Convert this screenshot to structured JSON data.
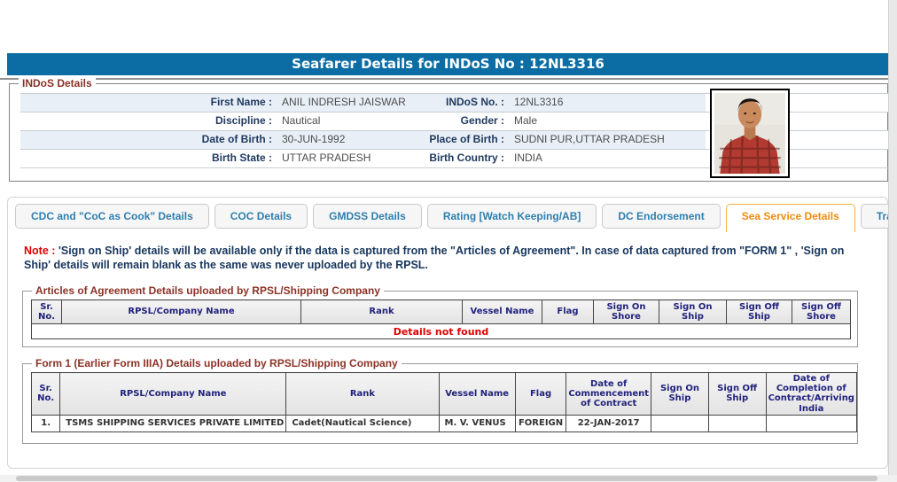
{
  "header": {
    "title": "Seafarer Details for INDoS No : 12NL3316"
  },
  "indos_details": {
    "legend": "INDoS Details",
    "rows": [
      {
        "left_label": "First Name :",
        "left_value": "ANIL INDRESH JAISWAR",
        "right_label": "INDoS No. :",
        "right_value": "12NL3316"
      },
      {
        "left_label": "Discipline :",
        "left_value": "Nautical",
        "right_label": "Gender :",
        "right_value": "Male"
      },
      {
        "left_label": "Date of Birth :",
        "left_value": "30-JUN-1992",
        "right_label": "Place of Birth :",
        "right_value": "SUDNI PUR,UTTAR PRADESH"
      },
      {
        "left_label": "Birth State :",
        "left_value": "UTTAR PRADESH",
        "right_label": "Birth Country :",
        "right_value": "INDIA"
      }
    ],
    "photo": "seafarer-photo"
  },
  "tabs": [
    {
      "slug": "cdc-coc-as-cook-details",
      "label": "CDC and \"CoC as Cook\" Details",
      "active": false
    },
    {
      "slug": "coc-details",
      "label": "COC Details",
      "active": false
    },
    {
      "slug": "gmdss-details",
      "label": "GMDSS Details",
      "active": false
    },
    {
      "slug": "rating-watch-keeping-ab",
      "label": "Rating [Watch Keeping/AB]",
      "active": false
    },
    {
      "slug": "dc-endorsement",
      "label": "DC Endorsement",
      "active": false
    },
    {
      "slug": "sea-service-details",
      "label": "Sea Service Details",
      "active": true
    },
    {
      "slug": "training-details",
      "label": "Training Details",
      "active": false
    }
  ],
  "note": {
    "prefix": "Note :",
    "text": " 'Sign on Ship' details will be available only if the data is captured from the \"Articles of Agreement\". In case of data captured from \"FORM 1\" , 'Sign on Ship' details will remain blank as the same was never uploaded by the RPSL."
  },
  "articles_table": {
    "legend": "Articles of Agreement Details uploaded by RPSL/Shipping Company",
    "headers": [
      "Sr. No.",
      "RPSL/Company Name",
      "Rank",
      "Vessel Name",
      "Flag",
      "Sign On Shore",
      "Sign On Ship",
      "Sign Off Ship",
      "Sign Off Shore"
    ],
    "empty_message": "Details not found"
  },
  "form1_table": {
    "legend": "Form 1 (Earlier Form IIIA) Details uploaded by RPSL/Shipping Company",
    "headers": [
      "Sr. No.",
      "RPSL/Company Name",
      "Rank",
      "Vessel Name",
      "Flag",
      "Date of Commencement of Contract",
      "Sign On Ship",
      "Sign Off Ship",
      "Date of Completion of Contract/Arriving India"
    ],
    "rows": [
      [
        "1.",
        "TSMS SHIPPING SERVICES PRIVATE LIMITED",
        "Cadet(Nautical Science)",
        "M. V. VENUS",
        "FOREIGN",
        "22-JAN-2017",
        "",
        "",
        ""
      ]
    ]
  },
  "colors": {
    "title_bar": "#0c6da5",
    "active_tab_text": "#ef8b10",
    "active_tab_border": "#f0b43c",
    "inactive_tab_text": "#2f7fae",
    "legend_maroon": "#8b3226",
    "note_red": "#e00000",
    "label_navy": "#1f3a60",
    "table_header_navy": "#22227e",
    "row_stripe": "#e9eff7"
  }
}
